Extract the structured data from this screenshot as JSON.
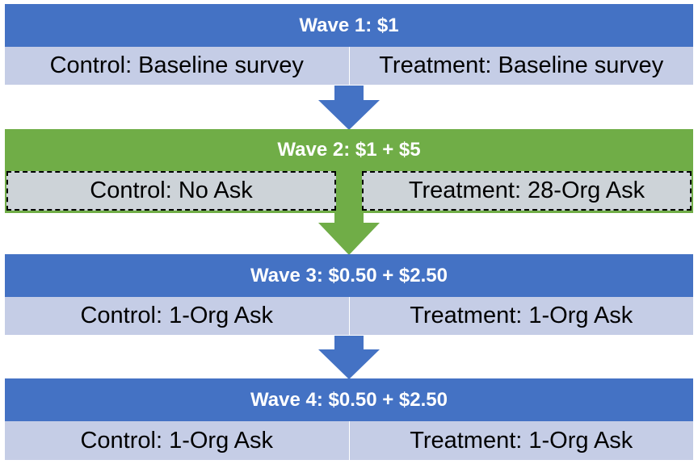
{
  "colors": {
    "blue": "#4472c4",
    "blue_light": "#c5cde6",
    "green": "#70ad47",
    "gray": "#cdd3d8",
    "text": "#000000",
    "header_text": "#ffffff"
  },
  "waves": [
    {
      "title": "Wave 1: $1",
      "control": "Control: Baseline survey",
      "treatment": "Treatment: Baseline survey"
    },
    {
      "title": "Wave 2: $1 + $5",
      "control": "Control: No Ask",
      "treatment": "Treatment: 28-Org Ask"
    },
    {
      "title": "Wave 3: $0.50 + $2.50",
      "control": "Control: 1-Org Ask",
      "treatment": "Treatment: 1-Org Ask"
    },
    {
      "title": "Wave 4: $0.50 + $2.50",
      "control": "Control: 1-Org Ask",
      "treatment": "Treatment: 1-Org Ask"
    }
  ]
}
